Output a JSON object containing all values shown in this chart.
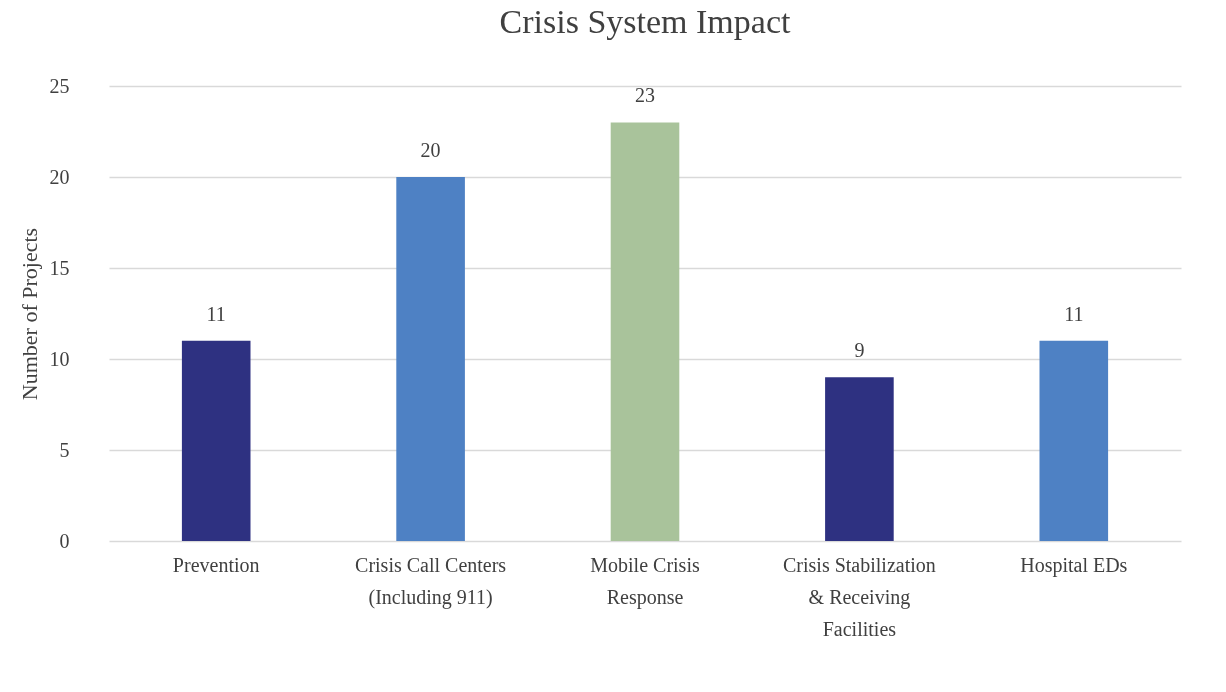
{
  "chart_data": {
    "type": "bar",
    "title": "Crisis System Impact",
    "ylabel": "Number of Projects",
    "categories": [
      "Prevention",
      "Crisis Call Centers (Including 911)",
      "Mobile Crisis Response",
      "Crisis Stabilization & Receiving Facilities",
      "Hospital EDs"
    ],
    "values": [
      11,
      20,
      23,
      9,
      11
    ],
    "colors": [
      "#2e3181",
      "#4e81c4",
      "#a9c39b",
      "#2e3181",
      "#4e81c4"
    ],
    "ylim": [
      0,
      25
    ],
    "yticks": [
      0,
      5,
      10,
      15,
      20,
      25
    ],
    "grid": "y",
    "data_labels": true
  }
}
